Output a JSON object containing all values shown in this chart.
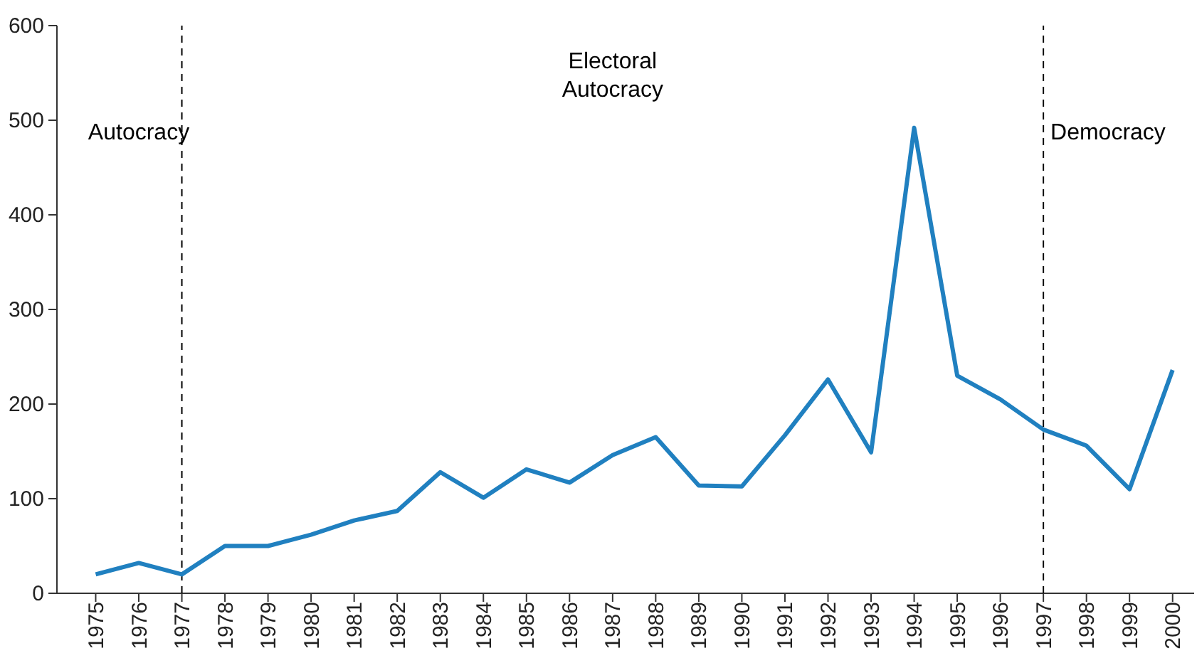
{
  "chart_data": {
    "type": "line",
    "x": [
      1975,
      1976,
      1977,
      1978,
      1979,
      1980,
      1981,
      1982,
      1983,
      1984,
      1985,
      1986,
      1987,
      1988,
      1989,
      1990,
      1991,
      1992,
      1993,
      1994,
      1995,
      1996,
      1997,
      1998,
      1999,
      2000
    ],
    "series": [
      {
        "color": "#2080c0",
        "values": [
          20,
          32,
          20,
          50,
          50,
          62,
          77,
          87,
          128,
          101,
          131,
          117,
          146,
          165,
          114,
          113,
          167,
          226,
          149,
          492,
          230,
          205,
          173,
          156,
          110,
          236
        ]
      }
    ],
    "xlim": [
      1974.1,
      2000.5
    ],
    "xticks": [
      1975,
      1976,
      1977,
      1978,
      1979,
      1980,
      1981,
      1982,
      1983,
      1984,
      1985,
      1986,
      1987,
      1988,
      1989,
      1990,
      1991,
      1992,
      1993,
      1994,
      1995,
      1996,
      1997,
      1998,
      1999,
      2000
    ],
    "ylim": [
      0,
      600
    ],
    "yticks": [
      0,
      100,
      200,
      300,
      400,
      500,
      600
    ],
    "grid": false,
    "marker": "none",
    "line_style": "solid",
    "ref_lines": [
      {
        "axis": "x",
        "value": 1977,
        "line_style": "dashed",
        "color": "#000000"
      },
      {
        "axis": "x",
        "value": 1997,
        "line_style": "dashed",
        "color": "#000000"
      }
    ],
    "annotations": [
      "Autocracy",
      "Electoral Autocracy",
      "Democracy"
    ]
  }
}
